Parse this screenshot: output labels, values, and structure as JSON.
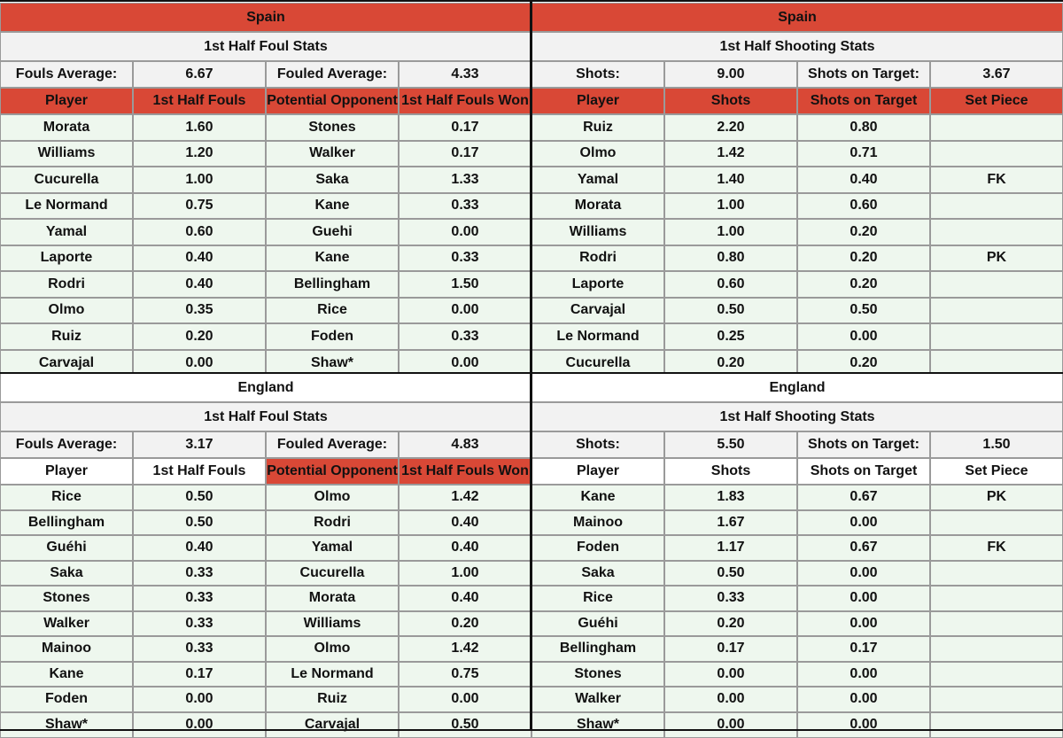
{
  "spain": {
    "team": "Spain",
    "foul": {
      "title": "1st Half Foul Stats",
      "avg_label1": "Fouls Average:",
      "avg_value1": "6.67",
      "avg_label2": "Fouled Average:",
      "avg_value2": "4.33",
      "headers": [
        "Player",
        "1st Half Fouls",
        "Potential Opponent",
        "1st Half Fouls Won"
      ],
      "rows": [
        [
          "Morata",
          "1.60",
          "Stones",
          "0.17"
        ],
        [
          "Williams",
          "1.20",
          "Walker",
          "0.17"
        ],
        [
          "Cucurella",
          "1.00",
          "Saka",
          "1.33"
        ],
        [
          "Le Normand",
          "0.75",
          "Kane",
          "0.33"
        ],
        [
          "Yamal",
          "0.60",
          "Guehi",
          "0.00"
        ],
        [
          "Laporte",
          "0.40",
          "Kane",
          "0.33"
        ],
        [
          "Rodri",
          "0.40",
          "Bellingham",
          "1.50"
        ],
        [
          "Olmo",
          "0.35",
          "Rice",
          "0.00"
        ],
        [
          "Ruiz",
          "0.20",
          "Foden",
          "0.33"
        ],
        [
          "Carvajal",
          "0.00",
          "Shaw*",
          "0.00"
        ]
      ]
    },
    "shoot": {
      "title": "1st Half Shooting Stats",
      "avg_label1": "Shots:",
      "avg_value1": "9.00",
      "avg_label2": "Shots on Target:",
      "avg_value2": "3.67",
      "headers": [
        "Player",
        "Shots",
        "Shots on Target",
        "Set Piece"
      ],
      "rows": [
        [
          "Ruiz",
          "2.20",
          "0.80",
          ""
        ],
        [
          "Olmo",
          "1.42",
          "0.71",
          ""
        ],
        [
          "Yamal",
          "1.40",
          "0.40",
          "FK"
        ],
        [
          "Morata",
          "1.00",
          "0.60",
          ""
        ],
        [
          "Williams",
          "1.00",
          "0.20",
          ""
        ],
        [
          "Rodri",
          "0.80",
          "0.20",
          "PK"
        ],
        [
          "Laporte",
          "0.60",
          "0.20",
          ""
        ],
        [
          "Carvajal",
          "0.50",
          "0.50",
          ""
        ],
        [
          "Le Normand",
          "0.25",
          "0.00",
          ""
        ],
        [
          "Cucurella",
          "0.20",
          "0.20",
          ""
        ]
      ]
    }
  },
  "england": {
    "team": "England",
    "foul": {
      "title": "1st Half Foul Stats",
      "avg_label1": "Fouls Average:",
      "avg_value1": "3.17",
      "avg_label2": "Fouled Average:",
      "avg_value2": "4.83",
      "headers": [
        "Player",
        "1st Half Fouls",
        "Potential Opponent",
        "1st Half Fouls Won"
      ],
      "rows": [
        [
          "Rice",
          "0.50",
          "Olmo",
          "1.42"
        ],
        [
          "Bellingham",
          "0.50",
          "Rodri",
          "0.40"
        ],
        [
          "Guéhi",
          "0.40",
          "Yamal",
          "0.40"
        ],
        [
          "Saka",
          "0.33",
          "Cucurella",
          "1.00"
        ],
        [
          "Stones",
          "0.33",
          "Morata",
          "0.40"
        ],
        [
          "Walker",
          "0.33",
          "Williams",
          "0.20"
        ],
        [
          "Mainoo",
          "0.33",
          "Olmo",
          "1.42"
        ],
        [
          "Kane",
          "0.17",
          "Le Normand",
          "0.75"
        ],
        [
          "Foden",
          "0.00",
          "Ruiz",
          "0.00"
        ],
        [
          "Shaw*",
          "0.00",
          "Carvajal",
          "0.50"
        ]
      ]
    },
    "shoot": {
      "title": "1st Half Shooting Stats",
      "avg_label1": "Shots:",
      "avg_value1": "5.50",
      "avg_label2": "Shots on Target:",
      "avg_value2": "1.50",
      "headers": [
        "Player",
        "Shots",
        "Shots on Target",
        "Set Piece"
      ],
      "rows": [
        [
          "Kane",
          "1.83",
          "0.67",
          "PK"
        ],
        [
          "Mainoo",
          "1.67",
          "0.00",
          ""
        ],
        [
          "Foden",
          "1.17",
          "0.67",
          "FK"
        ],
        [
          "Saka",
          "0.50",
          "0.00",
          ""
        ],
        [
          "Rice",
          "0.33",
          "0.00",
          ""
        ],
        [
          "Guéhi",
          "0.20",
          "0.00",
          ""
        ],
        [
          "Bellingham",
          "0.17",
          "0.17",
          ""
        ],
        [
          "Stones",
          "0.00",
          "0.00",
          ""
        ],
        [
          "Walker",
          "0.00",
          "0.00",
          ""
        ],
        [
          "Shaw*",
          "0.00",
          "0.00",
          ""
        ]
      ]
    }
  },
  "colors": {
    "header_red": "#d94836",
    "row_green": "#eef7ee",
    "avg_grey": "#f2f2f2"
  }
}
